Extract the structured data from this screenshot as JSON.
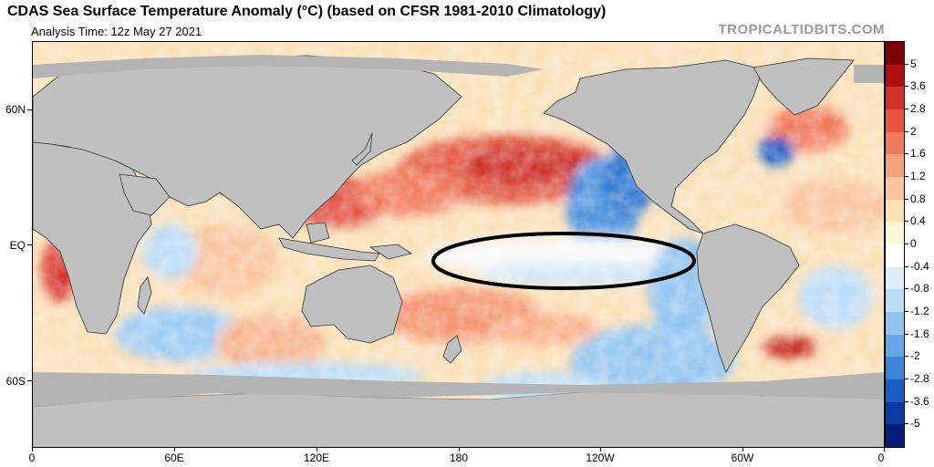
{
  "header": {
    "title": "CDAS Sea Surface Temperature Anomaly (°C) (based on CFSR 1981-2010 Climatology)",
    "subtitle": "Analysis Time: 12z May 27 2021",
    "credit": "TROPICALTIDBITS.COM"
  },
  "axes": {
    "lat_labels": [
      "60N",
      "EQ",
      "60S"
    ],
    "lon_labels": [
      "0",
      "60E",
      "120E",
      "180",
      "120W",
      "60W",
      "0"
    ]
  },
  "colorbar": {
    "labels": [
      "5",
      "3.6",
      "2.8",
      "2",
      "1.6",
      "1.2",
      "0.8",
      "0.4",
      "0",
      "-0.4",
      "-0.8",
      "-1.2",
      "-1.6",
      "-2",
      "-2.8",
      "-3.6",
      "-5"
    ],
    "colors": [
      "#7a0403",
      "#b40d0d",
      "#d6302b",
      "#e8553f",
      "#f07a5c",
      "#f6a07c",
      "#f9c49e",
      "#fbe3b0",
      "#fdf6d8",
      "#ffffff",
      "#ddeefb",
      "#b9dcf7",
      "#90c3f0",
      "#64a6e6",
      "#3c84d8",
      "#1c5fc4",
      "#0a3aa3",
      "#061b7a"
    ]
  },
  "colors": {
    "land": "#c0c0c0",
    "ice": "#b4b4b4",
    "annotation": "#000000"
  },
  "annotation": {
    "shape": "ellipse",
    "region": "central-eastern equatorial Pacific"
  }
}
